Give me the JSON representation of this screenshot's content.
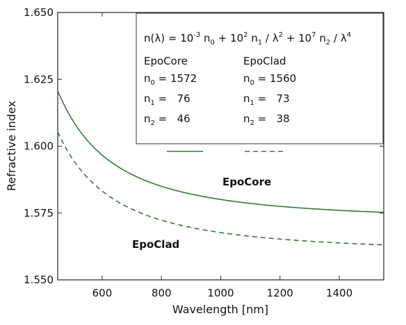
{
  "chart_data": {
    "type": "line",
    "title": "",
    "xlabel": "Wavelength [nm]",
    "ylabel": "Refractive index",
    "xlim": [
      450,
      1550
    ],
    "ylim": [
      1.55,
      1.65
    ],
    "x_ticks": [
      600,
      800,
      1000,
      1200,
      1400
    ],
    "x_tick_labels": [
      "600",
      "800",
      "1000",
      "1200",
      "1400"
    ],
    "y_ticks": [
      1.55,
      1.575,
      1.6,
      1.625,
      1.65
    ],
    "y_tick_labels": [
      "1.550",
      "1.575",
      "1.600",
      "1.625",
      "1.650"
    ],
    "grid": false,
    "legend_position": "top-right",
    "series": [
      {
        "name": "EpoCore",
        "style": "solid",
        "color": "#2e7d32",
        "n0": 1572,
        "n1": 76,
        "n2": 46
      },
      {
        "name": "EpoClad",
        "style": "dashed",
        "color": "#2e7d32",
        "n0": 1560,
        "n1": 73,
        "n2": 38
      }
    ],
    "annotations": [
      {
        "text": "EpoCore"
      },
      {
        "text": "EpoClad"
      }
    ],
    "legend": {
      "formula": {
        "lhs": "n(λ) = 10",
        "e1": "-3",
        "t1": " n",
        "s0": "0",
        "t2": " + 10",
        "e2": "2",
        "t3": " n",
        "s1": "1",
        "t4": " / λ",
        "e3": "2",
        "t5": " + 10",
        "e4": "7",
        "t6": " n",
        "s2": "2",
        "t7": " / λ",
        "e5": "4"
      },
      "col1_header": "EpoCore",
      "col2_header": "EpoClad",
      "rows": [
        {
          "sym": "n",
          "sub": "0",
          "core": "= 1572",
          "clad": "= 1560"
        },
        {
          "sym": "n",
          "sub": "1",
          "core": "=   76",
          "clad": "=   73"
        },
        {
          "sym": "n",
          "sub": "2",
          "core": "=   46",
          "clad": "=   38"
        }
      ]
    }
  }
}
